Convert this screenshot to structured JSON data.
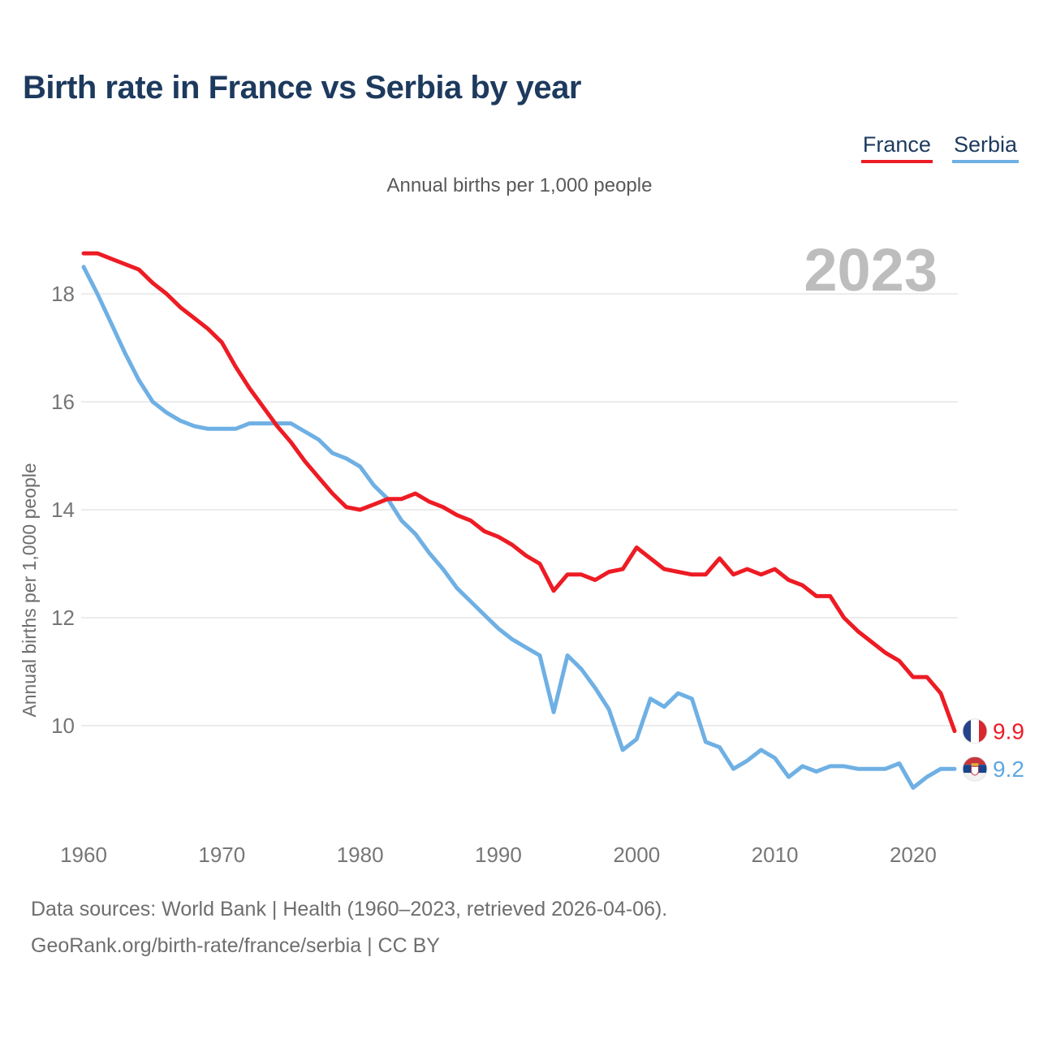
{
  "header": {
    "title": "Birth rate in France vs Serbia by year"
  },
  "legend": [
    {
      "label": "France",
      "color": "#ed1c24"
    },
    {
      "label": "Serbia",
      "color": "#6fb0e4"
    }
  ],
  "subtitle": "Annual births per 1,000 people",
  "watermark": "2023",
  "y_axis": {
    "title": "Annual births per 1,000 people",
    "ticks": [
      18,
      16,
      14,
      12,
      10
    ]
  },
  "x_axis": {
    "ticks": [
      1960,
      1970,
      1980,
      1990,
      2000,
      2010,
      2020
    ]
  },
  "end_labels": [
    {
      "series": "France",
      "value": "9.9",
      "flag": "france-flag"
    },
    {
      "series": "Serbia",
      "value": "9.2",
      "flag": "serbia-flag"
    }
  ],
  "footer": {
    "line1": "Data sources: World Bank | Health (1960–2023, retrieved 2026-04-06).",
    "line2": "GeoRank.org/birth-rate/france/serbia | CC BY"
  },
  "chart_data": {
    "type": "line",
    "title": "Birth rate in France vs Serbia by year",
    "subtitle": "Annual births per 1,000 people",
    "ylabel": "Annual births per 1,000 people",
    "xlabel": "",
    "ylim": [
      8.7,
      18.9
    ],
    "xlim": [
      1960,
      2023
    ],
    "grid": "horizontal",
    "legend_position": "top-right",
    "years": [
      1960,
      1961,
      1962,
      1963,
      1964,
      1965,
      1966,
      1967,
      1968,
      1969,
      1970,
      1971,
      1972,
      1973,
      1974,
      1975,
      1976,
      1977,
      1978,
      1979,
      1980,
      1981,
      1982,
      1983,
      1984,
      1985,
      1986,
      1987,
      1988,
      1989,
      1990,
      1991,
      1992,
      1993,
      1994,
      1995,
      1996,
      1997,
      1998,
      1999,
      2000,
      2001,
      2002,
      2003,
      2004,
      2005,
      2006,
      2007,
      2008,
      2009,
      2010,
      2011,
      2012,
      2013,
      2014,
      2015,
      2016,
      2017,
      2018,
      2019,
      2020,
      2021,
      2022,
      2023
    ],
    "series": [
      {
        "name": "Serbia",
        "color": "#6fb0e4",
        "values": [
          18.5,
          18.0,
          17.45,
          16.9,
          16.4,
          16.0,
          15.8,
          15.65,
          15.55,
          15.5,
          15.5,
          15.5,
          15.6,
          15.6,
          15.6,
          15.6,
          15.45,
          15.3,
          15.05,
          14.95,
          14.8,
          14.45,
          14.2,
          13.8,
          13.55,
          13.2,
          12.9,
          12.55,
          12.3,
          12.05,
          11.8,
          11.6,
          11.45,
          11.3,
          10.25,
          11.3,
          11.05,
          10.7,
          10.3,
          9.55,
          9.75,
          10.5,
          10.35,
          10.6,
          10.5,
          9.7,
          9.6,
          9.2,
          9.35,
          9.55,
          9.4,
          9.05,
          9.25,
          9.15,
          9.25,
          9.25,
          9.2,
          9.2,
          9.2,
          9.3,
          8.85,
          9.05,
          9.2,
          9.2
        ]
      },
      {
        "name": "France",
        "color": "#ed1c24",
        "values": [
          18.75,
          18.75,
          18.65,
          18.55,
          18.45,
          18.2,
          18.0,
          17.75,
          17.55,
          17.35,
          17.1,
          16.65,
          16.25,
          15.9,
          15.55,
          15.25,
          14.9,
          14.6,
          14.3,
          14.05,
          14.0,
          14.1,
          14.2,
          14.2,
          14.3,
          14.15,
          14.05,
          13.9,
          13.8,
          13.6,
          13.5,
          13.35,
          13.15,
          13.0,
          12.5,
          12.8,
          12.8,
          12.7,
          12.85,
          12.9,
          13.3,
          13.1,
          12.9,
          12.85,
          12.8,
          12.8,
          13.1,
          12.8,
          12.9,
          12.8,
          12.9,
          12.7,
          12.6,
          12.4,
          12.4,
          12.0,
          11.75,
          11.55,
          11.35,
          11.2,
          10.9,
          10.9,
          10.6,
          9.9
        ]
      }
    ]
  }
}
